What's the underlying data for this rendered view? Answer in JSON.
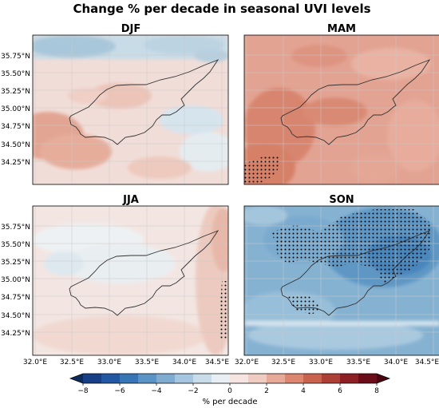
{
  "figure": {
    "title": "Change % per decade in seasonal UVI levels",
    "panels": [
      {
        "id": "djf",
        "title": "DJF",
        "pattern": "djf",
        "stipple": "djf"
      },
      {
        "id": "mam",
        "title": "MAM",
        "pattern": "mam",
        "stipple": "mam"
      },
      {
        "id": "jja",
        "title": "JJA",
        "pattern": "jja",
        "stipple": "jja"
      },
      {
        "id": "son",
        "title": "SON",
        "pattern": "son",
        "stipple": "son"
      }
    ],
    "lat_labels": [
      "35.75°N",
      "35.50°N",
      "35.25°N",
      "35.00°N",
      "34.75°N",
      "34.50°N",
      "34.25°N"
    ],
    "lon_labels": [
      "32.0°E",
      "32.5°E",
      "33.0°E",
      "33.5°E",
      "34.0°E",
      "34.5°E"
    ],
    "colorbar": {
      "label": "% per decade",
      "min": -8,
      "max": 8,
      "ticks": [
        "−8",
        "−6",
        "−4",
        "−2",
        "0",
        "2",
        "4",
        "6",
        "8"
      ],
      "colors": [
        "#0d2a5c",
        "#173f86",
        "#2257a4",
        "#3775b6",
        "#5a93c5",
        "#7fabd0",
        "#a5c6de",
        "#c9dcea",
        "#e8eff4",
        "#f6e4e0",
        "#f0cbc2",
        "#e8aa98",
        "#dc866f",
        "#c9634d",
        "#ad3f34",
        "#8e1f24",
        "#6a0d18",
        "#4a0410"
      ]
    }
  },
  "colors": {
    "coast": "#333333",
    "grid": "#c8c8c8",
    "stipple": "#000000"
  }
}
